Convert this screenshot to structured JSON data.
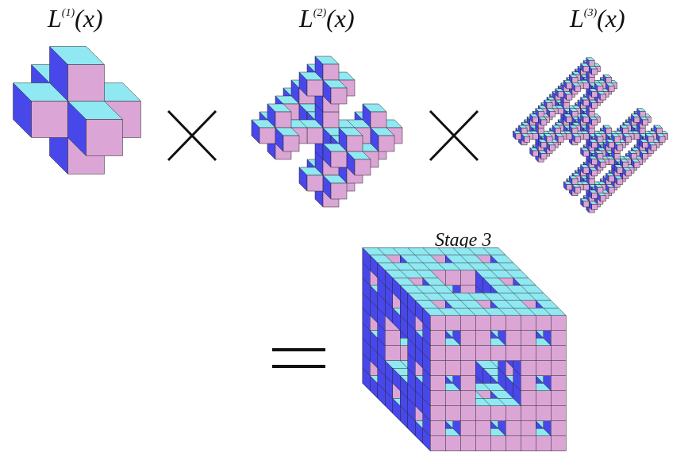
{
  "labels": [
    {
      "base": "L",
      "sup": "(1)",
      "arg": "(x)"
    },
    {
      "base": "L",
      "sup": "(2)",
      "arg": "(x)"
    },
    {
      "base": "L",
      "sup": "(3)",
      "arg": "(x)"
    }
  ],
  "result_label": "Stage 3"
}
